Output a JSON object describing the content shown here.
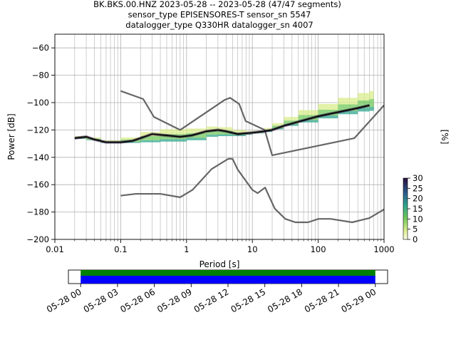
{
  "title_lines": [
    "BK.BKS.00.HNZ   2023-05-28 -- 2023-05-28  (47/47 segments)",
    "sensor_type EPISENSORES-T sensor_sn 5547",
    "datalogger_type Q330HR datalogger_sn 4007"
  ],
  "chart_data": {
    "type": "heatmap",
    "title": "BK.BKS.00.HNZ   2023-05-28 -- 2023-05-28  (47/47 segments)",
    "xlabel": "Period [s]",
    "ylabel": "Power [dB]",
    "xscale": "log",
    "xlim": [
      0.01,
      1000
    ],
    "ylim": [
      -200,
      -50
    ],
    "x_ticks": [
      0.01,
      0.1,
      1,
      10,
      100,
      1000
    ],
    "x_tick_labels": [
      "0.01",
      "0.1",
      "1",
      "10",
      "100",
      "1000"
    ],
    "y_ticks": [
      -200,
      -180,
      -160,
      -140,
      -120,
      -100,
      -80,
      -60
    ],
    "y_tick_labels": [
      "−200",
      "−180",
      "−160",
      "−140",
      "−120",
      "−100",
      "−80",
      "−60"
    ],
    "grid": true,
    "colorbar": {
      "label": "[%]",
      "range": [
        0,
        30
      ],
      "ticks": [
        0,
        5,
        10,
        15,
        20,
        25,
        30
      ],
      "tick_labels": [
        "0",
        "5",
        "10",
        "15",
        "20",
        "25",
        "30"
      ],
      "colormap": "pqlx"
    },
    "mode_curve": {
      "x": [
        0.02,
        0.03,
        0.04,
        0.06,
        0.1,
        0.15,
        0.2,
        0.3,
        0.5,
        0.8,
        1.2,
        2,
        3,
        4,
        6,
        10,
        15,
        20,
        30,
        50,
        100,
        200,
        400,
        600
      ],
      "y": [
        -126,
        -125,
        -127,
        -129,
        -129,
        -128,
        -126,
        -123,
        -124,
        -125,
        -124,
        -121,
        -120,
        -121,
        -123,
        -122,
        -121,
        -120,
        -117,
        -114,
        -110,
        -107,
        -104,
        -102
      ]
    },
    "nhnm": {
      "x": [
        0.1,
        0.22,
        0.32,
        0.8,
        3.8,
        4.6,
        6.3,
        7.9,
        15.4,
        20,
        354.8,
        10000
      ],
      "y": [
        -91.5,
        -97.4,
        -110.5,
        -120,
        -98,
        -96.5,
        -101,
        -113.5,
        -120,
        -138.5,
        -126,
        -48.5
      ]
    },
    "nlnm": {
      "x": [
        0.1,
        0.17,
        0.4,
        0.8,
        1.24,
        2.4,
        4.3,
        5,
        6,
        10,
        12,
        15.6,
        21.9,
        31.6,
        45,
        70,
        101,
        154,
        328,
        600,
        1000
      ],
      "y": [
        -168,
        -166.7,
        -166.7,
        -169.2,
        -163.7,
        -148.6,
        -141.1,
        -141.1,
        -149,
        -163.8,
        -166.2,
        -162.1,
        -177.5,
        -185,
        -187.5,
        -187.5,
        -185,
        -185,
        -187.5,
        -184.4,
        -178
      ]
    },
    "histogram_band": {
      "x": [
        0.02,
        0.03,
        0.05,
        0.1,
        0.2,
        0.4,
        0.8,
        1,
        2,
        3,
        5,
        8,
        10,
        15,
        20,
        30,
        50,
        100,
        200,
        400,
        600,
        700
      ],
      "low": [
        -127,
        -126,
        -129,
        -130,
        -129,
        -129,
        -128,
        -129,
        -126,
        -124,
        -125,
        -124,
        -123,
        -122,
        -121,
        -118,
        -116,
        -113,
        -110,
        -107,
        -106,
        -106
      ],
      "high": [
        -125,
        -124,
        -127,
        -128,
        -123,
        -120,
        -119,
        -120,
        -118,
        -117,
        -119,
        -121,
        -121,
        -120,
        -117,
        -113,
        -108,
        -103,
        -99,
        -94,
        -92,
        -91
      ]
    },
    "data_availability": {
      "x_tick_labels": [
        "05-28 00",
        "05-28 03",
        "05-28 06",
        "05-28 09",
        "05-28 12",
        "05-28 15",
        "05-28 18",
        "05-28 21",
        "05-29 00"
      ],
      "range_hours": [
        -1,
        25
      ],
      "coverage_hours": [
        0,
        24
      ],
      "colors": {
        "used": "#008000",
        "available": "#0000ff"
      }
    }
  }
}
